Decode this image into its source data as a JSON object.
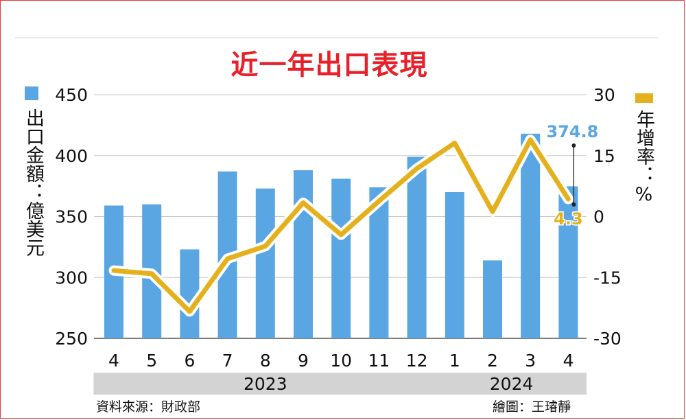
{
  "title": "近一年出口表現",
  "legend": {
    "bars": {
      "label": "出口金額：億美元",
      "color": "#5aa6e2"
    },
    "line": {
      "label": "年增率：%",
      "color": "#e4b11c"
    }
  },
  "footer": {
    "source": "資料來源：財政部",
    "credit": "繪圖：王璿靜"
  },
  "chart_data": {
    "type": "bar",
    "categories": [
      "4",
      "5",
      "6",
      "7",
      "8",
      "9",
      "10",
      "11",
      "12",
      "1",
      "2",
      "3",
      "4"
    ],
    "year_groups": [
      {
        "label": "2023",
        "from": 0,
        "to": 8
      },
      {
        "label": "2024",
        "from": 9,
        "to": 12
      }
    ],
    "series": [
      {
        "name": "出口金額：億美元",
        "type": "bar",
        "axis": "left",
        "values": [
          359,
          360,
          323,
          387,
          373,
          388,
          381,
          374,
          399,
          370,
          314,
          418,
          374.8
        ]
      },
      {
        "name": "年增率：%",
        "type": "line",
        "axis": "right",
        "values": [
          -13.3,
          -14.1,
          -23.4,
          -10.4,
          -7.3,
          3.4,
          -4.5,
          3.8,
          11.8,
          18.1,
          1.2,
          18.9,
          4.3
        ]
      }
    ],
    "y_left": {
      "min": 250,
      "max": 450,
      "ticks": [
        250,
        300,
        350,
        400,
        450
      ]
    },
    "y_right": {
      "min": -30,
      "max": 30,
      "ticks": [
        -30,
        -15,
        0,
        15,
        30
      ]
    },
    "annotations": [
      {
        "text": "374.8",
        "index": 12,
        "series": "bars",
        "color": "#5aa6e2"
      },
      {
        "text": "4.3",
        "index": 12,
        "series": "line",
        "color": "#e4b11c"
      }
    ],
    "grid": true
  }
}
